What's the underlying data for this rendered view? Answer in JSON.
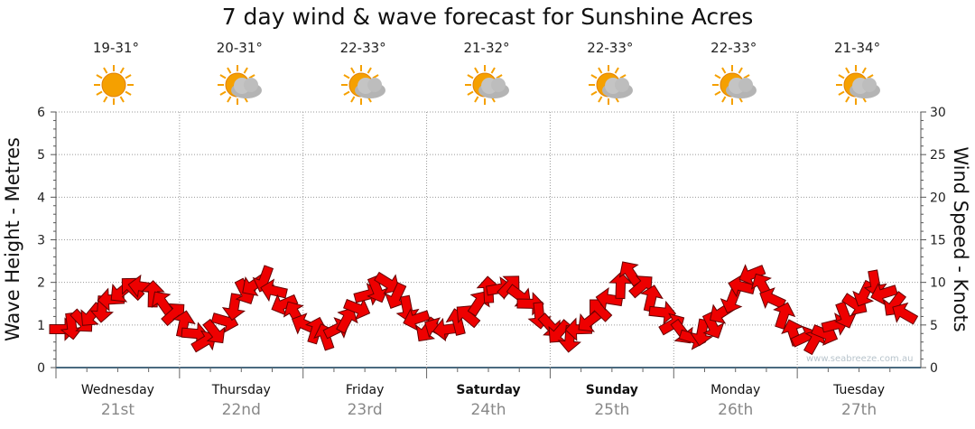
{
  "title": "7 day wind & wave forecast for Sunshine Acres",
  "watermark": "www.seabreeze.com.au",
  "days": [
    {
      "day": "Wednesday",
      "date": "21st",
      "temp": "19-31°",
      "icon": "sunny-icon",
      "bold": false
    },
    {
      "day": "Thursday",
      "date": "22nd",
      "temp": "20-31°",
      "icon": "partly-cloudy-icon",
      "bold": false
    },
    {
      "day": "Friday",
      "date": "23rd",
      "temp": "22-33°",
      "icon": "partly-cloudy-icon",
      "bold": false
    },
    {
      "day": "Saturday",
      "date": "24th",
      "temp": "21-32°",
      "icon": "partly-cloudy-icon",
      "bold": true
    },
    {
      "day": "Sunday",
      "date": "25th",
      "temp": "22-33°",
      "icon": "partly-cloudy-icon",
      "bold": true
    },
    {
      "day": "Monday",
      "date": "26th",
      "temp": "22-33°",
      "icon": "partly-cloudy-icon",
      "bold": false
    },
    {
      "day": "Tuesday",
      "date": "27th",
      "temp": "21-34°",
      "icon": "partly-cloudy-icon",
      "bold": false
    }
  ],
  "colors": {
    "arrow_fill": "#ee0000",
    "arrow_stroke": "#660000",
    "sun": "#f5a000",
    "cloud": "#b4b4b4",
    "grid": "#999999",
    "axis": "#4a6a80"
  },
  "chart_data": {
    "type": "line",
    "title": "7 day wind & wave forecast for Sunshine Acres",
    "ylabel_left": "Wave Height - Metres",
    "ylabel_right": "Wind Speed - Knots",
    "ylim_left": [
      0,
      6
    ],
    "ylim_right": [
      0,
      30
    ],
    "yticks_left": [
      "0",
      "1",
      "2",
      "3",
      "4",
      "5",
      "6"
    ],
    "yticks_right": [
      "0",
      "5",
      "10",
      "15",
      "20",
      "25",
      "30"
    ],
    "grid": true,
    "series": [
      {
        "axis": "right",
        "marker": "wind-direction-arrow",
        "x_hours": [
          0,
          4,
          8,
          12,
          16,
          20,
          24,
          28,
          32,
          36,
          40,
          44,
          48,
          52,
          56,
          60,
          64,
          68,
          72,
          76,
          80,
          84,
          88,
          92,
          96,
          100,
          104,
          108,
          112,
          116,
          120,
          124,
          128,
          132,
          136,
          140,
          144,
          148,
          152,
          156,
          160,
          164,
          168
        ],
        "values": [
          4.5,
          5.5,
          7.0,
          9.0,
          9.5,
          7.5,
          5.0,
          3.0,
          5.5,
          9.0,
          10.5,
          7.5,
          5.0,
          3.5,
          5.5,
          8.5,
          10.0,
          7.0,
          4.5,
          4.5,
          6.0,
          9.0,
          9.5,
          7.5,
          5.0,
          3.5,
          5.5,
          8.0,
          11.0,
          8.0,
          5.0,
          3.5,
          5.0,
          8.0,
          11.0,
          8.0,
          4.0,
          3.0,
          5.0,
          7.5,
          10.0,
          7.5,
          5.0
        ]
      }
    ]
  }
}
